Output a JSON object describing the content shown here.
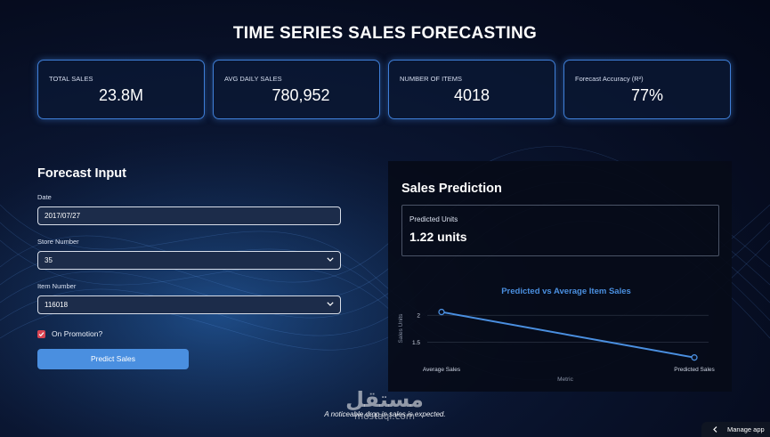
{
  "page": {
    "title": "TIME SERIES SALES FORECASTING"
  },
  "kpis": [
    {
      "label": "TOTAL SALES",
      "value": "23.8M"
    },
    {
      "label": "AVG DAILY SALES",
      "value": "780,952"
    },
    {
      "label": "NUMBER OF ITEMS",
      "value": "4018"
    },
    {
      "label": "Forecast Accuracy (R²)",
      "value": "77%"
    }
  ],
  "form": {
    "title": "Forecast Input",
    "date_label": "Date",
    "date_value": "2017/07/27",
    "store_label": "Store Number",
    "store_value": "35",
    "item_label": "Item Number",
    "item_value": "116018",
    "promo_label": "On Promotion?",
    "promo_checked": true,
    "submit_label": "Predict Sales"
  },
  "prediction": {
    "title": "Sales Prediction",
    "label": "Predicted Units",
    "value": "1.22 units"
  },
  "chart_data": {
    "type": "line",
    "title": "Predicted vs Average Item Sales",
    "xlabel": "Metric",
    "ylabel": "Sales Units",
    "categories": [
      "Average Sales",
      "Predicted Sales"
    ],
    "values": [
      2.06,
      1.22
    ],
    "yticks": [
      1.5,
      2
    ],
    "ylim": [
      1.1,
      2.25
    ],
    "grid": true,
    "colors": {
      "line": "#4a8fe0",
      "title": "#4a8fe0"
    }
  },
  "footnote": "A noticeable drop in sales is expected.",
  "watermark": {
    "arabic": "مستقل",
    "latin": "mostaql.com"
  },
  "manage_app": {
    "label": "Manage app"
  },
  "colors": {
    "accent": "#4a8fe0",
    "kpi_border": "#3f7fd8",
    "checkbox": "#d94452",
    "panel_bg": "#060b18"
  }
}
